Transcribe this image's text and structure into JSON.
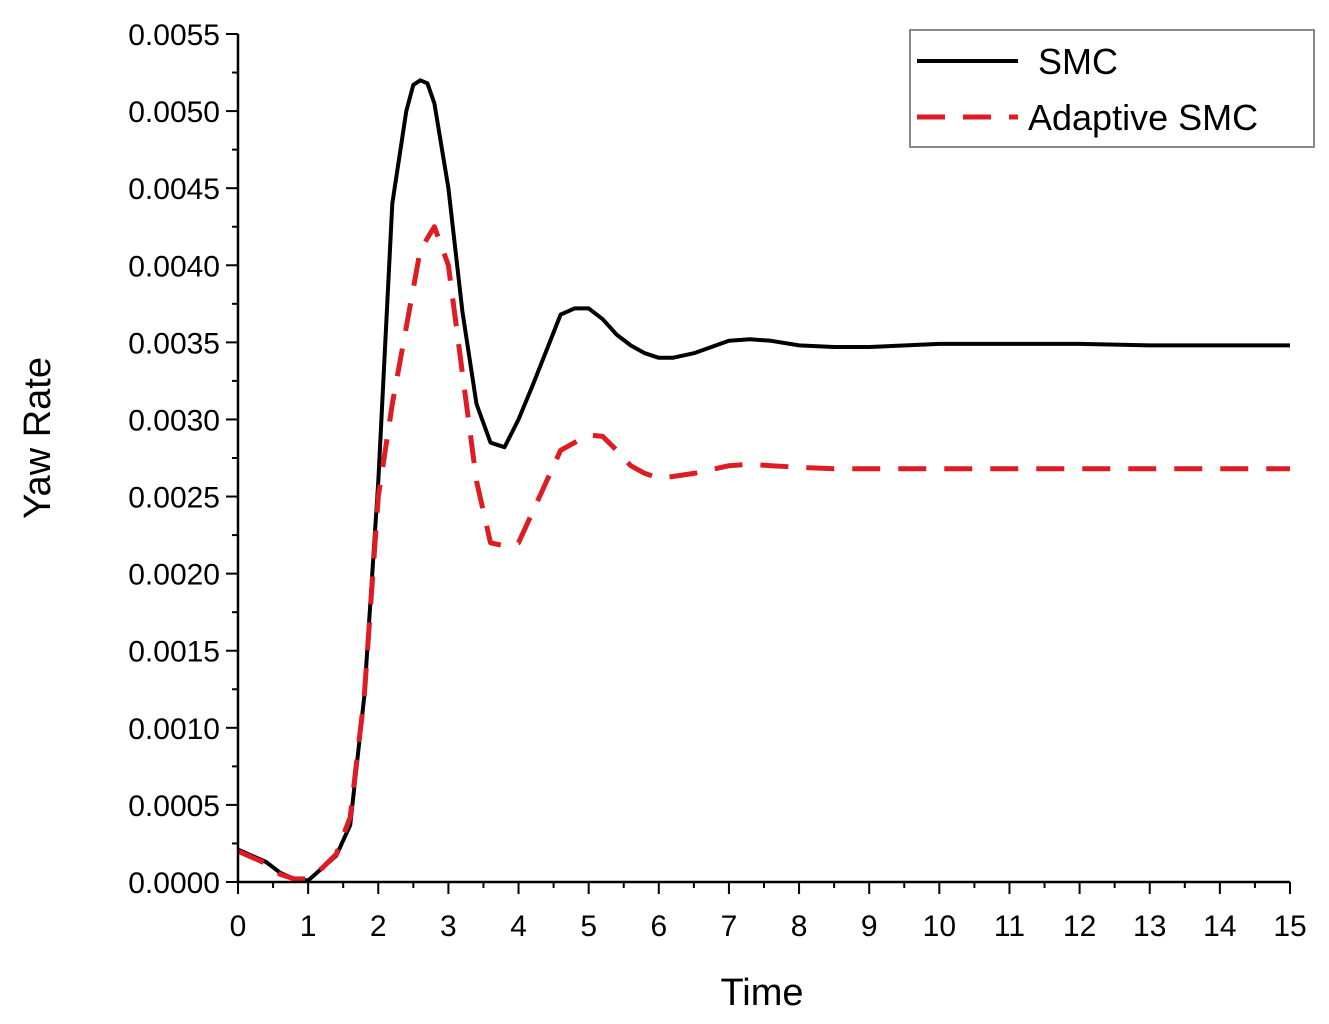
{
  "chart_data": {
    "type": "line",
    "title": "",
    "xlabel": "Time",
    "ylabel": "Yaw Rate",
    "xlim": [
      0,
      15
    ],
    "ylim": [
      0,
      0.0055
    ],
    "grid": false,
    "legend_position": "top-right",
    "x_ticks": [
      0,
      1,
      2,
      3,
      4,
      5,
      6,
      7,
      8,
      9,
      10,
      11,
      12,
      13,
      14,
      15
    ],
    "x_tick_labels": [
      "0",
      "1",
      "2",
      "3",
      "4",
      "5",
      "6",
      "7",
      "8",
      "9",
      "10",
      "11",
      "12",
      "13",
      "14",
      "15"
    ],
    "y_ticks": [
      0,
      0.0005,
      0.001,
      0.0015,
      0.002,
      0.0025,
      0.003,
      0.0035,
      0.004,
      0.0045,
      0.005,
      0.0055
    ],
    "y_tick_labels": [
      "0.0000",
      "0.0005",
      "0.0010",
      "0.0015",
      "0.0020",
      "0.0025",
      "0.0030",
      "0.0035",
      "0.0040",
      "0.0045",
      "0.0050",
      "0.0055"
    ],
    "series": [
      {
        "name": "SMC",
        "style": "solid",
        "color": "#000000",
        "x": [
          0,
          0.2,
          0.4,
          0.6,
          0.8,
          1.0,
          1.2,
          1.4,
          1.6,
          1.8,
          2.0,
          2.2,
          2.4,
          2.5,
          2.6,
          2.7,
          2.8,
          3.0,
          3.2,
          3.4,
          3.6,
          3.8,
          4.0,
          4.2,
          4.4,
          4.6,
          4.8,
          5.0,
          5.2,
          5.4,
          5.6,
          5.8,
          6.0,
          6.2,
          6.5,
          7.0,
          7.3,
          7.6,
          8.0,
          8.5,
          9.0,
          10.0,
          11.0,
          12.0,
          13.0,
          14.0,
          15.0
        ],
        "values": [
          0.00021,
          0.00017,
          0.00013,
          6e-05,
          2e-05,
          1e-05,
          9e-05,
          0.00017,
          0.00037,
          0.0012,
          0.0026,
          0.0044,
          0.005,
          0.00517,
          0.0052,
          0.00518,
          0.00505,
          0.0045,
          0.0037,
          0.0031,
          0.00285,
          0.00282,
          0.003,
          0.00322,
          0.00345,
          0.00368,
          0.00372,
          0.00372,
          0.00365,
          0.00355,
          0.00348,
          0.00343,
          0.0034,
          0.0034,
          0.00343,
          0.00351,
          0.00352,
          0.00351,
          0.00348,
          0.00347,
          0.00347,
          0.00349,
          0.00349,
          0.00349,
          0.00348,
          0.00348,
          0.00348
        ]
      },
      {
        "name": "Adaptive SMC",
        "style": "dashed",
        "color": "#dd1c24",
        "x": [
          0,
          0.2,
          0.4,
          0.6,
          0.8,
          1.0,
          1.2,
          1.4,
          1.6,
          1.8,
          2.0,
          2.2,
          2.4,
          2.6,
          2.8,
          3.0,
          3.2,
          3.4,
          3.6,
          3.8,
          4.0,
          4.2,
          4.4,
          4.6,
          4.8,
          5.0,
          5.2,
          5.4,
          5.6,
          5.8,
          6.0,
          6.2,
          6.5,
          7.0,
          7.3,
          7.6,
          8.0,
          8.5,
          9.0,
          10.0,
          11.0,
          12.0,
          13.0,
          14.0,
          15.0
        ],
        "values": [
          0.0002,
          0.00016,
          0.00012,
          5e-05,
          2e-05,
          2e-05,
          9e-05,
          0.00018,
          0.00042,
          0.0012,
          0.0025,
          0.0031,
          0.0036,
          0.0041,
          0.00425,
          0.004,
          0.0033,
          0.0026,
          0.0022,
          0.00218,
          0.0022,
          0.0024,
          0.0026,
          0.0028,
          0.00285,
          0.0029,
          0.00289,
          0.0028,
          0.0027,
          0.00265,
          0.00262,
          0.00263,
          0.00265,
          0.0027,
          0.00271,
          0.0027,
          0.00269,
          0.00268,
          0.00268,
          0.00268,
          0.00268,
          0.00268,
          0.00268,
          0.00268,
          0.00268
        ]
      }
    ]
  }
}
